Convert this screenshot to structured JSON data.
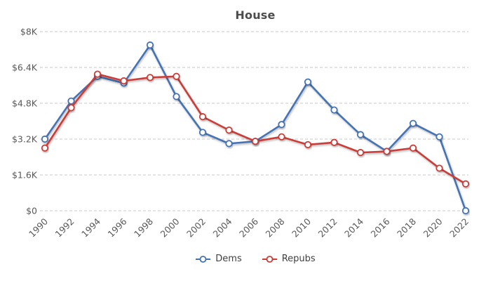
{
  "chart": {
    "title": "House"
  },
  "chart_data": {
    "type": "line",
    "title": "House",
    "categories": [
      "1990",
      "1992",
      "1994",
      "1996",
      "1998",
      "2000",
      "2002",
      "2004",
      "2006",
      "2008",
      "2010",
      "2012",
      "2014",
      "2016",
      "2018",
      "2020",
      "2022"
    ],
    "series": [
      {
        "name": "Dems",
        "color": "#4473b3",
        "values": [
          3200,
          4900,
          6000,
          5700,
          7400,
          5100,
          3500,
          3000,
          3100,
          3850,
          5750,
          4500,
          3400,
          2650,
          3900,
          3300,
          0
        ]
      },
      {
        "name": "Repubs",
        "color": "#cb3c37",
        "values": [
          2800,
          4600,
          6100,
          5800,
          5950,
          6000,
          4200,
          3600,
          3100,
          3300,
          2950,
          3050,
          2600,
          2650,
          2800,
          1900,
          1200
        ]
      }
    ],
    "ylim": [
      0,
      8000
    ],
    "yticks": [
      {
        "value": 0,
        "label": "$0"
      },
      {
        "value": 1600,
        "label": "$1.6K"
      },
      {
        "value": 3200,
        "label": "$3.2K"
      },
      {
        "value": 4800,
        "label": "$4.8K"
      },
      {
        "value": 6400,
        "label": "$6.4K"
      },
      {
        "value": 8000,
        "label": "$8K"
      }
    ],
    "grid": "horizontal-dashed",
    "legend_position": "bottom",
    "colors": {
      "gridline": "#c8c8c8",
      "tick_label": "#595959",
      "title_text": "#4d4d4d",
      "legend_text": "#404040",
      "marker_fill": "#ffffff",
      "background": "#ffffff"
    }
  }
}
